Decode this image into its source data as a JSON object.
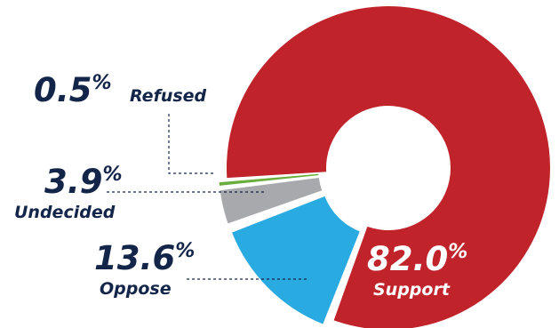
{
  "chart_data": {
    "type": "pie",
    "style": "exploded-donut",
    "slices": [
      {
        "key": "support",
        "label": "Support",
        "value": 82.0,
        "display": "82.0",
        "color": "#c1232b"
      },
      {
        "key": "oppose",
        "label": "Oppose",
        "value": 13.6,
        "display": "13.6",
        "color": "#29aae1"
      },
      {
        "key": "undecided",
        "label": "Undecided",
        "value": 3.9,
        "display": "3.9",
        "color": "#a7a9ac"
      },
      {
        "key": "refused",
        "label": "Refused",
        "value": 0.5,
        "display": "0.5",
        "color": "#6aae3e"
      }
    ],
    "percent_sign": "%",
    "label_colors": {
      "outside": "#14254a",
      "inside": "#ffffff"
    },
    "leader_line_color": "#14254a",
    "title": ""
  }
}
